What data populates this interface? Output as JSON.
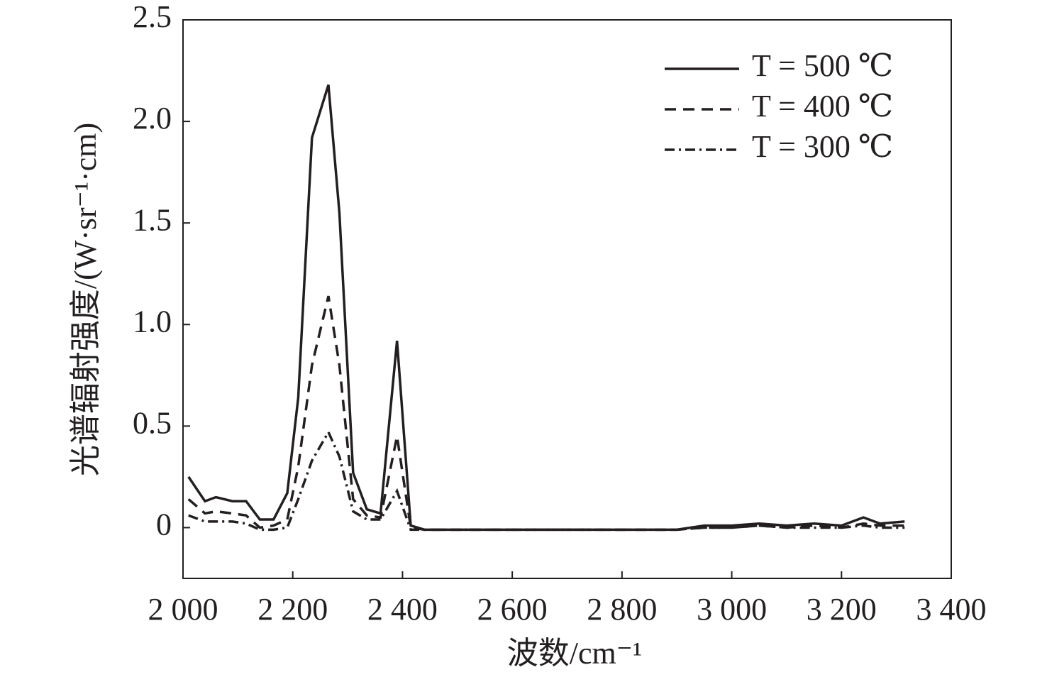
{
  "chart_data": {
    "type": "line",
    "xlabel": "波数/cm⁻¹",
    "ylabel": "光谱辐射强度/(W·sr⁻¹·cm)",
    "x": [
      2010,
      2040,
      2060,
      2090,
      2115,
      2140,
      2165,
      2190,
      2210,
      2235,
      2265,
      2285,
      2310,
      2335,
      2360,
      2390,
      2415,
      2440,
      2500,
      2600,
      2700,
      2800,
      2900,
      2950,
      3000,
      3050,
      3100,
      3150,
      3200,
      3240,
      3270,
      3315
    ],
    "series": [
      {
        "name": "T = 500 ℃",
        "color": "#231f20",
        "style": "solid",
        "values": [
          0.25,
          0.13,
          0.15,
          0.13,
          0.13,
          0.04,
          0.04,
          0.17,
          0.64,
          1.92,
          2.18,
          1.55,
          0.27,
          0.09,
          0.07,
          0.92,
          0.01,
          -0.01,
          -0.01,
          -0.01,
          -0.01,
          -0.01,
          -0.01,
          0.01,
          0.01,
          0.02,
          0.01,
          0.02,
          0.01,
          0.05,
          0.02,
          0.03
        ]
      },
      {
        "name": "T = 400 ℃",
        "color": "#231f20",
        "style": "dashed",
        "values": [
          0.14,
          0.07,
          0.08,
          0.07,
          0.06,
          0,
          0.01,
          0.04,
          0.3,
          0.8,
          1.14,
          0.8,
          0.14,
          0.06,
          0.05,
          0.45,
          0,
          -0.01,
          -0.01,
          -0.01,
          -0.01,
          -0.01,
          -0.01,
          0,
          0,
          0.01,
          0,
          0.01,
          0,
          0.02,
          0.01,
          0.01
        ]
      },
      {
        "name": "T = 300 ℃",
        "color": "#231f20",
        "style": "dashdot",
        "values": [
          0.06,
          0.03,
          0.03,
          0.03,
          0.02,
          -0.01,
          -0.01,
          0,
          0.14,
          0.33,
          0.47,
          0.35,
          0.08,
          0.04,
          0.04,
          0.18,
          -0.01,
          -0.01,
          -0.01,
          -0.01,
          -0.01,
          -0.01,
          -0.01,
          0,
          0,
          0.01,
          0,
          0,
          0,
          0.01,
          0,
          0
        ]
      }
    ],
    "xlim": [
      2000,
      3400
    ],
    "xticks": [
      {
        "value": 2000,
        "label": "2 000"
      },
      {
        "value": 2200,
        "label": "2 200"
      },
      {
        "value": 2400,
        "label": "2 400"
      },
      {
        "value": 2600,
        "label": "2 600"
      },
      {
        "value": 2800,
        "label": "2 800"
      },
      {
        "value": 3000,
        "label": "3 000"
      },
      {
        "value": 3200,
        "label": "3 200"
      },
      {
        "value": 3400,
        "label": "3 400"
      }
    ],
    "ylim": [
      -0.25,
      2.5
    ],
    "yticks": [
      0,
      0.5,
      {
        "value": 1,
        "label": "1.0"
      },
      1.5,
      {
        "value": 2,
        "label": "2.0"
      },
      2.5
    ],
    "grid": false,
    "legend": "upper-right"
  }
}
